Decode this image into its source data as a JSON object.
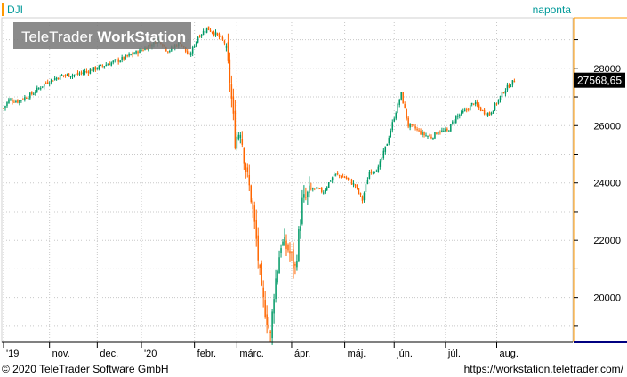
{
  "chart_data": {
    "type": "candlestick",
    "title": "DJI",
    "interval": "naponta",
    "watermark": "TeleTrader WorkStation",
    "watermark_plain": "TeleTrader ",
    "watermark_bold": "WorkStation",
    "last_value_label": "27568,65",
    "last_value": 27568.65,
    "ylim": [
      18500,
      29700
    ],
    "yticks": [
      20000,
      22000,
      24000,
      26000,
      28000
    ],
    "ytick_labels": [
      "20000",
      "22000",
      "24000",
      "26000",
      "28000"
    ],
    "xlim": [
      0,
      320
    ],
    "xtick_labels": [
      {
        "label": "'19",
        "x": 0
      },
      {
        "label": "nov.",
        "x": 26
      },
      {
        "label": "dec.",
        "x": 53
      },
      {
        "label": "'20",
        "x": 78
      },
      {
        "label": "febr.",
        "x": 108
      },
      {
        "label": "márc.",
        "x": 132
      },
      {
        "label": "ápr.",
        "x": 163
      },
      {
        "label": "máj.",
        "x": 193
      },
      {
        "label": "jún.",
        "x": 221
      },
      {
        "label": "júl.",
        "x": 250
      },
      {
        "label": "aug.",
        "x": 279
      }
    ],
    "grid": true,
    "colors": {
      "up": "#009966",
      "down": "#ff6600",
      "grid": "#c8c8c8",
      "series_label": "#009999",
      "accent": "#ff9900",
      "last_bg": "#000000",
      "last_fg": "#ffffff"
    },
    "anchors": [
      [
        0,
        26600
      ],
      [
        3,
        26900
      ],
      [
        8,
        26850
      ],
      [
        16,
        27100
      ],
      [
        24,
        27500
      ],
      [
        33,
        27750
      ],
      [
        41,
        27780
      ],
      [
        50,
        27950
      ],
      [
        58,
        28130
      ],
      [
        66,
        28300
      ],
      [
        75,
        28550
      ],
      [
        80,
        28700
      ],
      [
        88,
        29000
      ],
      [
        93,
        28600
      ],
      [
        100,
        28900
      ],
      [
        105,
        28400
      ],
      [
        110,
        29100
      ],
      [
        115,
        29400
      ],
      [
        120,
        29200
      ],
      [
        125,
        28900
      ],
      [
        128,
        27600
      ],
      [
        131,
        25500
      ],
      [
        134,
        25900
      ],
      [
        137,
        24500
      ],
      [
        140,
        23500
      ],
      [
        143,
        22000
      ],
      [
        146,
        20100
      ],
      [
        149,
        19300
      ],
      [
        151,
        18600
      ],
      [
        153,
        20200
      ],
      [
        157,
        21900
      ],
      [
        161,
        21700
      ],
      [
        165,
        21000
      ],
      [
        169,
        23300
      ],
      [
        175,
        23800
      ],
      [
        181,
        23700
      ],
      [
        187,
        24300
      ],
      [
        193,
        24200
      ],
      [
        199,
        23900
      ],
      [
        203,
        23400
      ],
      [
        207,
        24400
      ],
      [
        212,
        24500
      ],
      [
        217,
        25400
      ],
      [
        221,
        26300
      ],
      [
        225,
        27100
      ],
      [
        229,
        26000
      ],
      [
        233,
        25900
      ],
      [
        237,
        25700
      ],
      [
        242,
        25600
      ],
      [
        246,
        25800
      ],
      [
        251,
        25800
      ],
      [
        256,
        26300
      ],
      [
        261,
        26500
      ],
      [
        266,
        26800
      ],
      [
        271,
        26500
      ],
      [
        275,
        26400
      ],
      [
        279,
        26800
      ],
      [
        283,
        27200
      ],
      [
        286,
        27400
      ],
      [
        289,
        27568.65
      ]
    ]
  },
  "footer": {
    "copyright": "© 2020 TeleTrader Software GmbH",
    "url": "https://workstation.teletrader.com/"
  }
}
